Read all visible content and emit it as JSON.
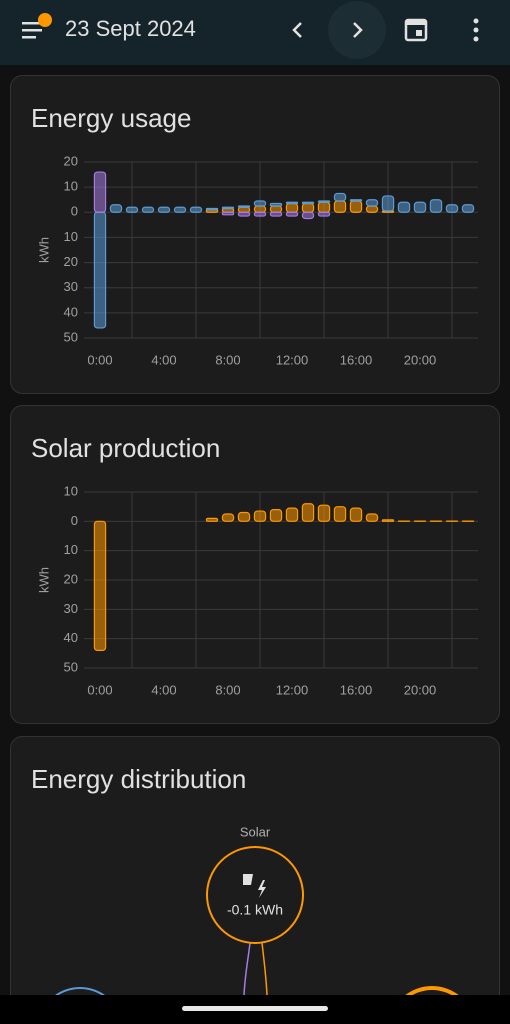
{
  "header": {
    "date": "23 Sept 2024"
  },
  "energy_usage": {
    "type": "bar",
    "stacked": true,
    "title": "Energy usage",
    "y_label": "kWh",
    "categories": [
      "0:00",
      null,
      null,
      null,
      "4:00",
      null,
      null,
      null,
      "8:00",
      null,
      null,
      null,
      "12:00",
      null,
      null,
      null,
      "16:00",
      null,
      null,
      null,
      "20:00",
      null,
      null,
      null
    ],
    "series": [
      {
        "color": "#ff9800",
        "values": [
          0,
          0,
          0,
          0,
          0,
          0,
          0,
          1,
          1.5,
          2,
          2.5,
          2.5,
          3.5,
          3.5,
          4,
          4.5,
          4.5,
          2.5,
          0.5,
          0,
          0,
          0,
          0,
          0
        ]
      },
      {
        "color": "#5b9bd5",
        "values": [
          -46,
          3,
          2,
          2,
          2,
          2,
          2,
          0.5,
          0.5,
          0.5,
          2,
          1,
          0.5,
          0.5,
          0.5,
          3,
          0.5,
          2.5,
          6,
          4,
          4,
          5,
          3,
          3
        ]
      },
      {
        "color": "#a57ce0",
        "values": [
          16,
          0,
          0,
          0,
          0,
          0,
          0,
          0,
          -1,
          -1.5,
          -1.5,
          -1.5,
          -1.5,
          -2.5,
          -1.5,
          0,
          0,
          0,
          0,
          0,
          0,
          0,
          0,
          0
        ]
      }
    ],
    "ylim": [
      -50,
      20
    ],
    "yticks": [
      20,
      10,
      0,
      {
        "value": -10,
        "label": "10"
      },
      {
        "value": -20,
        "label": "20"
      },
      {
        "value": -30,
        "label": "30"
      },
      {
        "value": -40,
        "label": "40"
      },
      {
        "value": -50,
        "label": "50"
      }
    ],
    "grid": true
  },
  "solar_production": {
    "type": "bar",
    "stacked": true,
    "title": "Solar production",
    "y_label": "kWh",
    "categories": [
      "0:00",
      null,
      null,
      null,
      "4:00",
      null,
      null,
      null,
      "8:00",
      null,
      null,
      null,
      "12:00",
      null,
      null,
      null,
      "16:00",
      null,
      null,
      null,
      "20:00",
      null,
      null,
      null
    ],
    "series": [
      {
        "color": "#ff9800",
        "values": [
          -44,
          0,
          0,
          0,
          0,
          0,
          0,
          1,
          2.5,
          3,
          3.5,
          4,
          4.5,
          6,
          5.5,
          5,
          4.5,
          2.5,
          0.5,
          0.1,
          0.1,
          0.1,
          0.1,
          0.1
        ]
      }
    ],
    "ylim": [
      -50,
      10
    ],
    "yticks": [
      10,
      0,
      {
        "value": -10,
        "label": "10"
      },
      {
        "value": -20,
        "label": "20"
      },
      {
        "value": -30,
        "label": "30"
      },
      {
        "value": -40,
        "label": "40"
      },
      {
        "value": -50,
        "label": "50"
      }
    ],
    "grid": true
  },
  "energy_distribution": {
    "title": "Energy distribution",
    "solar": {
      "label": "Solar",
      "value": "-0.1 kWh"
    }
  }
}
